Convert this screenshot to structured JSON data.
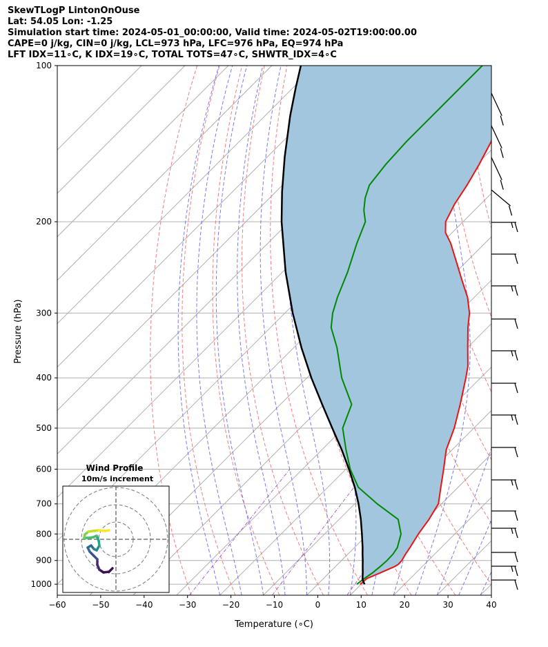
{
  "header": {
    "line1": "SkewTLogP LintonOnOuse",
    "line2": "Lat: 54.05   Lon: -1.25",
    "line3": "Simulation start time: 2024-05-01_00:00:00, Valid time: 2024-05-02T19:00:00.00",
    "line4": "CAPE=0 j/kg, CIN=0 j/kg, LCL=973 hPa, LFC=976 hPa, EQ=974 hPa",
    "line5": "LFT IDX=11∘C, K IDX=19∘C, TOTAL TOTS=47∘C, SHWTR_IDX=4∘C"
  },
  "chart_data": {
    "type": "line",
    "subtype": "skew-t log-p",
    "xlabel": "Temperature (∘C)",
    "ylabel": "Pressure (hPa)",
    "xlim": [
      -60,
      40
    ],
    "ylim": [
      1050,
      100
    ],
    "x_ticks": [
      "−60",
      "−50",
      "−40",
      "−30",
      "−20",
      "−10",
      "0",
      "10",
      "20",
      "30",
      "40"
    ],
    "x_tick_values": [
      -60,
      -50,
      -40,
      -30,
      -20,
      -10,
      0,
      10,
      20,
      30,
      40
    ],
    "y_ticks": [
      "1000",
      "900",
      "800",
      "700",
      "600",
      "500",
      "400",
      "300",
      "200",
      "100"
    ],
    "y_tick_values": [
      1000,
      900,
      800,
      700,
      600,
      500,
      400,
      300,
      200,
      100
    ],
    "grid": true,
    "colors": {
      "temperature": "#ee1111",
      "dewpoint": "#008800",
      "parcel": "#000000",
      "shading": "#a3c6df",
      "isotherm": "#b0b0b0",
      "dry_adiabat": "#f07070",
      "moist_adiabat": "#6a6af0",
      "mixing_ratio": "#a050c8"
    },
    "series": [
      {
        "name": "Temperature",
        "pressure": [
          1000,
          975,
          950,
          925,
          915,
          900,
          875,
          850,
          800,
          750,
          700,
          650,
          600,
          550,
          500,
          450,
          400,
          380,
          350,
          320,
          300,
          280,
          260,
          240,
          220,
          210,
          200,
          185,
          170,
          155,
          140,
          128,
          118,
          110,
          104,
          100
        ],
        "temperature": [
          9.8,
          10.0,
          11.8,
          13.6,
          14.0,
          13.9,
          13.3,
          12.8,
          11.6,
          10.7,
          9.3,
          6.0,
          2.5,
          -1.4,
          -4.5,
          -8.6,
          -13.4,
          -15.6,
          -19.9,
          -24.5,
          -27.5,
          -31.5,
          -36.6,
          -42.0,
          -47.9,
          -51.5,
          -54.0,
          -56.0,
          -57.5,
          -59.5,
          -62.0,
          -65.5,
          -68.5,
          -71.0,
          -73.0,
          -74.0
        ]
      },
      {
        "name": "Dewpoint",
        "pressure": [
          1000,
          975,
          950,
          925,
          900,
          875,
          850,
          800,
          750,
          700,
          650,
          600,
          550,
          500,
          450,
          400,
          350,
          320,
          300,
          280,
          250,
          220,
          200,
          190,
          180,
          170,
          155,
          140,
          125,
          110,
          100
        ],
        "dewpoint": [
          9.0,
          9.4,
          10.0,
          10.3,
          10.5,
          10.4,
          9.9,
          7.6,
          3.6,
          -4.8,
          -13.0,
          -19.0,
          -24.5,
          -30.2,
          -33.6,
          -42.0,
          -50.0,
          -56.0,
          -59.0,
          -61.5,
          -65.0,
          -69.5,
          -72.5,
          -75.5,
          -78.0,
          -80.0,
          -81.0,
          -81.5,
          -81.5,
          -81.5,
          -81.5
        ]
      },
      {
        "name": "Parcel",
        "pressure": [
          1000,
          990,
          980,
          975,
          950,
          925,
          900,
          875,
          850,
          800,
          750,
          700,
          650,
          600,
          550,
          500,
          450,
          400,
          350,
          300,
          250,
          200,
          175,
          150,
          125,
          110,
          100
        ],
        "temperature": [
          10.8,
          10.0,
          9.3,
          9.0,
          7.7,
          6.3,
          4.9,
          3.4,
          1.9,
          -1.4,
          -5.0,
          -9.1,
          -13.8,
          -19.3,
          -25.5,
          -32.6,
          -40.4,
          -49.0,
          -58.2,
          -68.2,
          -79.3,
          -91.8,
          -98.6,
          -106.0,
          -114.2,
          -119.5,
          -123.3
        ]
      }
    ],
    "legend": "none"
  },
  "hodograph": {
    "title": "Wind Profile",
    "subtitle": "10m/s increment"
  }
}
